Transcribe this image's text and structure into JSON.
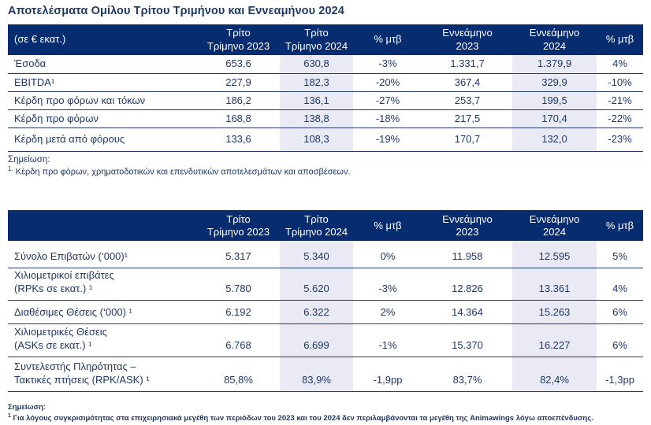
{
  "title": "Αποτελέσματα Ομίλου Τρίτου Τριμήνου και Εννεαμήνου 2024",
  "colors": {
    "header_bg": "#082C70",
    "text": "#1F3864",
    "border": "#27396B",
    "shade": "#E9EAF4",
    "page_bg": "#FFFFFF"
  },
  "table1": {
    "header": [
      {
        "line1": "(σε € εκατ.)",
        "line2": ""
      },
      {
        "line1": "Τρίτο",
        "line2": "Τρίμηνο 2023"
      },
      {
        "line1": "Τρίτο",
        "line2": "Τρίμηνο 2024"
      },
      {
        "line1": "% μτβ",
        "line2": ""
      },
      {
        "line1": "Εννεάμηνο",
        "line2": "2023"
      },
      {
        "line1": "Εννεάμηνο",
        "line2": "2024"
      },
      {
        "line1": "% μτβ",
        "line2": ""
      }
    ],
    "rows": [
      {
        "label": "Έσοδα",
        "values": [
          "653,6",
          "630,8",
          "-3%",
          "1.331,7",
          "1.379,9",
          "4%"
        ]
      },
      {
        "label": "EBITDA¹",
        "values": [
          "227,9",
          "182,3",
          "-20%",
          "367,4",
          "329,9",
          "-10%"
        ]
      },
      {
        "label": "Κέρδη προ φόρων και τόκων",
        "values": [
          "186,2",
          "136,1",
          "-27%",
          "253,7",
          "199,5",
          "-21%"
        ]
      },
      {
        "label": "Κέρδη προ φόρων",
        "values": [
          "168,8",
          "138,8",
          "-18%",
          "217,5",
          "170,4",
          "-22%"
        ]
      },
      {
        "label": "Κέρδη μετά από φόρους",
        "values": [
          "133,6",
          "108,3",
          "-19%",
          "170,7",
          "132,0",
          "-23%"
        ]
      }
    ],
    "note_label": "Σημείωση:",
    "note_sup": "1.",
    "note_text": " Κέρδη προ φόρων, χρηματοδοτικών και επενδυτικών αποτελεσμάτων και αποσβέσεων."
  },
  "table2": {
    "header": [
      {
        "line1": "",
        "line2": ""
      },
      {
        "line1": "Τρίτο",
        "line2": "Τρίμηνο 2023"
      },
      {
        "line1": "Τρίτο",
        "line2": "Τρίμηνο 2024"
      },
      {
        "line1": "% μτβ",
        "line2": ""
      },
      {
        "line1": "Εννεάμηνο",
        "line2": "2023"
      },
      {
        "line1": "Εννεάμηνο",
        "line2": "2024"
      },
      {
        "line1": "% μτβ",
        "line2": ""
      }
    ],
    "rows": [
      {
        "label": "Σύνολο Επιβατών (‘000)¹",
        "label2": "",
        "values": [
          "5.317",
          "5.340",
          "0%",
          "11.958",
          "12.595",
          "5%"
        ]
      },
      {
        "label": "Χιλιομετρικοί επιβάτες",
        "label2": "(RPKs σε εκατ.) ¹",
        "values": [
          "5.780",
          "5.620",
          "-3%",
          "12.826",
          "13.361",
          "4%"
        ]
      },
      {
        "label": "Διαθέσιμες Θέσεις (‘000) ¹",
        "label2": "",
        "values": [
          "6.192",
          "6.322",
          "2%",
          "14.364",
          "15.263",
          "6%"
        ]
      },
      {
        "label": "Χιλιομετρικές Θέσεις",
        "label2": "(ASKs σε εκατ.) ¹",
        "values": [
          "6.768",
          "6.699",
          "-1%",
          "15.370",
          "16.227",
          "6%"
        ]
      },
      {
        "label": "Συντελεστής Πληρότητας –",
        "label2": "Τακτικές πτήσεις (RPK/ASK) ¹",
        "values": [
          "85,8%",
          "83,9%",
          "-1,9pp",
          "83,7%",
          "82,4%",
          "-1,3pp"
        ]
      }
    ],
    "note_label": "Σημείωση:",
    "note_sup": "1",
    "note_text": " Για λόγους συγκρισιμότητας στα επιχειρησιακά μεγέθη των περιόδων του 2023 και του 2024 δεν περιλαμβάνονται τα μεγέθη της Animawings λόγω αποεπένδυσης."
  }
}
